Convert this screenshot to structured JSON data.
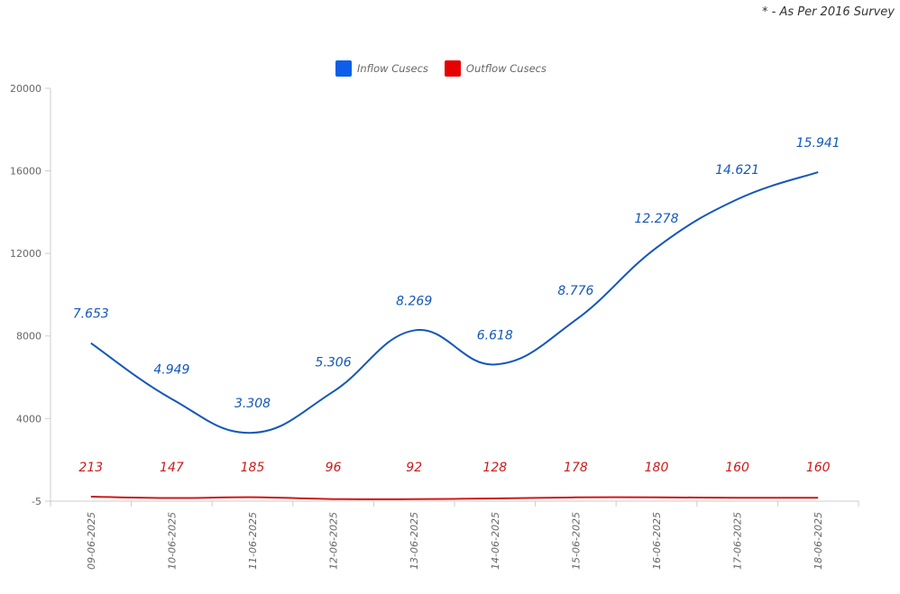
{
  "footnote": "* - As Per 2016 Survey",
  "chart_data": {
    "type": "line",
    "title": "",
    "xlabel": "",
    "ylabel": "",
    "categories": [
      "09-06-2025",
      "10-06-2025",
      "11-06-2025",
      "12-06-2025",
      "13-06-2025",
      "14-06-2025",
      "15-06-2025",
      "16-06-2025",
      "17-06-2025",
      "18-06-2025"
    ],
    "y_ticks": [
      -5,
      4000,
      8000,
      12000,
      16000,
      20000
    ],
    "y_tick_labels": [
      "-5",
      "4000",
      "8000",
      "12000",
      "16000",
      "20000"
    ],
    "ylim": [
      -5,
      20000
    ],
    "grid": false,
    "legend_position": "top-center",
    "series": [
      {
        "name": "Inflow Cusecs",
        "color": "#1457b8",
        "swatch": "#0d5fe8",
        "values": [
          7653,
          4949,
          3308,
          5306,
          8269,
          6618,
          8776,
          12278,
          14621,
          15941
        ],
        "labels": [
          "7.653",
          "4.949",
          "3.308",
          "5.306",
          "8.269",
          "6.618",
          "8.776",
          "12.278",
          "14.621",
          "15.941"
        ]
      },
      {
        "name": "Outflow Cusecs",
        "color": "#cc1a1a",
        "swatch": "#e60000",
        "values": [
          213,
          147,
          185,
          96,
          92,
          128,
          178,
          180,
          160,
          160
        ],
        "labels": [
          "213",
          "147",
          "185",
          "96",
          "92",
          "128",
          "178",
          "180",
          "160",
          "160"
        ]
      }
    ]
  }
}
